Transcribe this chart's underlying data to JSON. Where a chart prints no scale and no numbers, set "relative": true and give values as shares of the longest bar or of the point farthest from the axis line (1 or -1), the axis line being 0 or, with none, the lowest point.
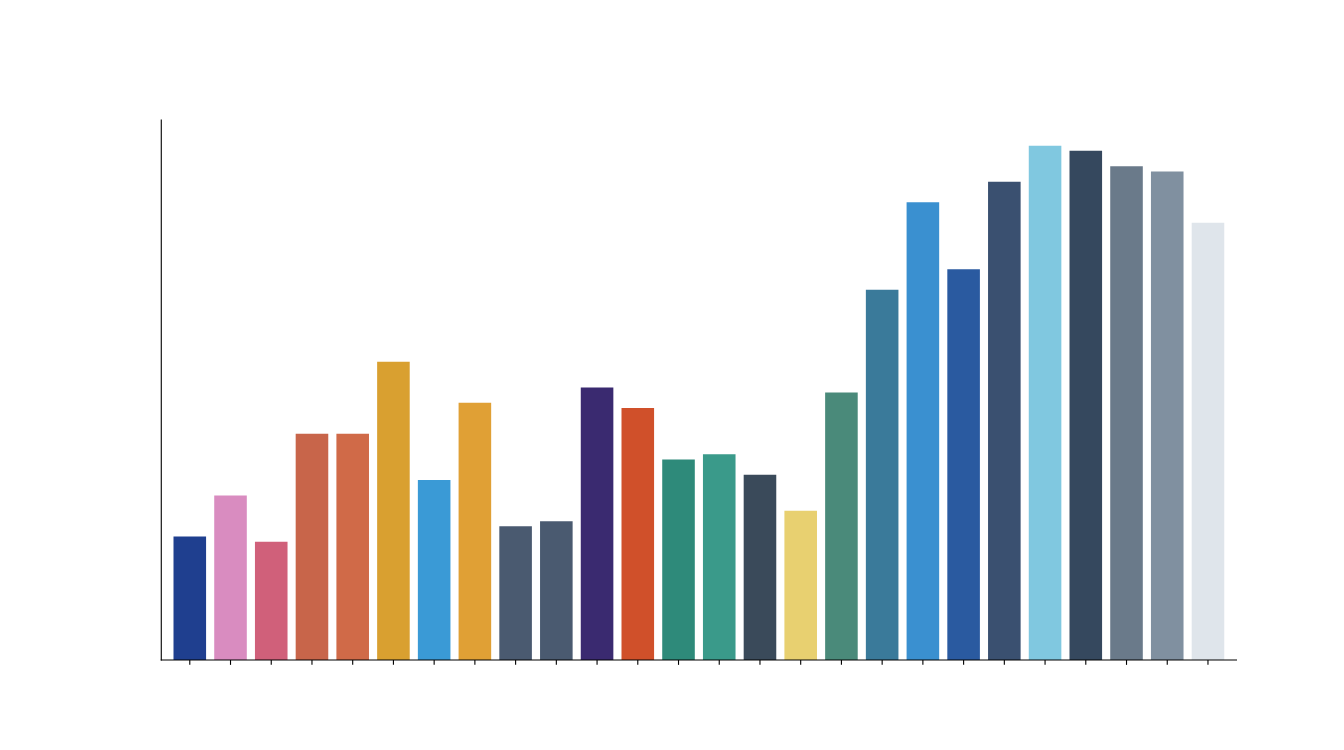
{
  "chart_data": {
    "type": "bar",
    "relative": true,
    "categories": [
      null,
      null,
      null,
      null,
      null,
      null,
      null,
      null,
      null,
      null,
      null,
      null,
      null,
      null,
      null,
      null,
      null,
      null,
      null,
      null,
      null,
      null,
      null,
      null,
      null,
      null
    ],
    "values": [
      0.24,
      0.32,
      0.23,
      0.44,
      0.44,
      0.58,
      0.35,
      0.5,
      0.26,
      0.27,
      0.53,
      0.49,
      0.39,
      0.4,
      0.36,
      0.29,
      0.52,
      0.72,
      0.89,
      0.76,
      0.93,
      1,
      0.99,
      0.96,
      0.95,
      0.85
    ],
    "colors": [
      "#1f3f8f",
      "#d98cc0",
      "#d0607a",
      "#c8654a",
      "#d06a48",
      "#d9a030",
      "#3a9ad6",
      "#e0a035",
      "#4a5a70",
      "#4a5a70",
      "#3a2a70",
      "#d0502a",
      "#2e8a7a",
      "#3a9a8a",
      "#3a4a5a",
      "#e8d070",
      "#4a8a7a",
      "#3a7a9a",
      "#3a90d0",
      "#2a5aa0",
      "#3a5070",
      "#80c8e0",
      "#35485e",
      "#6a7a8a",
      "#8090a0",
      "#dfe5eb"
    ]
  }
}
